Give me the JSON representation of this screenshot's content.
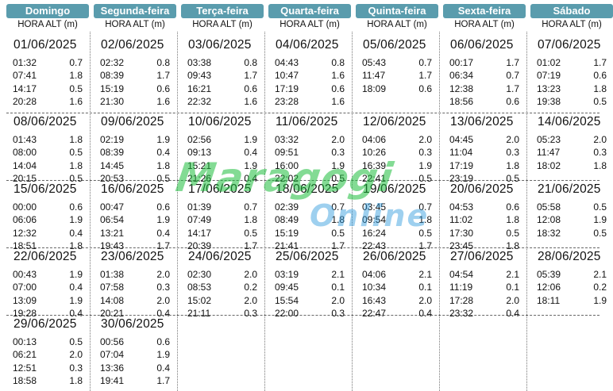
{
  "header": {
    "days": [
      "Domingo",
      "Segunda-feira",
      "Terça-feira",
      "Quarta-feira",
      "Quinta-feira",
      "Sexta-feira",
      "Sábado"
    ],
    "subheader": "HORA ALT (m)"
  },
  "watermark": {
    "line1": "Maragogi",
    "line2": "Online"
  },
  "weeks": [
    [
      null,
      null,
      null,
      null,
      null,
      null,
      null
    ]
  ],
  "calendar": [
    [
      {
        "date": "01/06/2025",
        "tides": [
          [
            "01:32",
            "0.7"
          ],
          [
            "07:41",
            "1.8"
          ],
          [
            "14:17",
            "0.5"
          ],
          [
            "20:28",
            "1.6"
          ]
        ]
      },
      {
        "date": "02/06/2025",
        "tides": [
          [
            "02:32",
            "0.8"
          ],
          [
            "08:39",
            "1.7"
          ],
          [
            "15:19",
            "0.6"
          ],
          [
            "21:30",
            "1.6"
          ]
        ]
      },
      {
        "date": "03/06/2025",
        "tides": [
          [
            "03:38",
            "0.8"
          ],
          [
            "09:43",
            "1.7"
          ],
          [
            "16:21",
            "0.6"
          ],
          [
            "22:32",
            "1.6"
          ]
        ]
      },
      {
        "date": "04/06/2025",
        "tides": [
          [
            "04:43",
            "0.8"
          ],
          [
            "10:47",
            "1.6"
          ],
          [
            "17:19",
            "0.6"
          ],
          [
            "23:28",
            "1.6"
          ]
        ]
      },
      {
        "date": "05/06/2025",
        "tides": [
          [
            "05:43",
            "0.7"
          ],
          [
            "11:47",
            "1.7"
          ],
          [
            "18:09",
            "0.6"
          ]
        ]
      },
      {
        "date": "06/06/2025",
        "tides": [
          [
            "00:17",
            "1.7"
          ],
          [
            "06:34",
            "0.7"
          ],
          [
            "12:38",
            "1.7"
          ],
          [
            "18:56",
            "0.6"
          ]
        ]
      },
      {
        "date": "07/06/2025",
        "tides": [
          [
            "01:02",
            "1.7"
          ],
          [
            "07:19",
            "0.6"
          ],
          [
            "13:23",
            "1.8"
          ],
          [
            "19:38",
            "0.5"
          ]
        ]
      }
    ],
    [
      {
        "date": "08/06/2025",
        "tides": [
          [
            "01:43",
            "1.8"
          ],
          [
            "08:00",
            "0.5"
          ],
          [
            "14:04",
            "1.8"
          ],
          [
            "20:15",
            "0.5"
          ]
        ]
      },
      {
        "date": "09/06/2025",
        "tides": [
          [
            "02:19",
            "1.9"
          ],
          [
            "08:39",
            "0.4"
          ],
          [
            "14:45",
            "1.8"
          ],
          [
            "20:53",
            "0.5"
          ]
        ]
      },
      {
        "date": "10/06/2025",
        "tides": [
          [
            "02:56",
            "1.9"
          ],
          [
            "09:13",
            "0.4"
          ],
          [
            "15:21",
            "1.9"
          ],
          [
            "21:26",
            "0.4"
          ]
        ]
      },
      {
        "date": "11/06/2025",
        "tides": [
          [
            "03:32",
            "2.0"
          ],
          [
            "09:51",
            "0.3"
          ],
          [
            "16:00",
            "1.9"
          ],
          [
            "22:02",
            "0.5"
          ]
        ]
      },
      {
        "date": "12/06/2025",
        "tides": [
          [
            "04:06",
            "2.0"
          ],
          [
            "10:26",
            "0.3"
          ],
          [
            "16:39",
            "1.9"
          ],
          [
            "22:41",
            "0.5"
          ]
        ]
      },
      {
        "date": "13/06/2025",
        "tides": [
          [
            "04:45",
            "2.0"
          ],
          [
            "11:04",
            "0.3"
          ],
          [
            "17:19",
            "1.8"
          ],
          [
            "23:19",
            "0.5"
          ]
        ]
      },
      {
        "date": "14/06/2025",
        "tides": [
          [
            "05:23",
            "2.0"
          ],
          [
            "11:47",
            "0.3"
          ],
          [
            "18:02",
            "1.8"
          ]
        ]
      }
    ],
    [
      {
        "date": "15/06/2025",
        "tides": [
          [
            "00:00",
            "0.6"
          ],
          [
            "06:06",
            "1.9"
          ],
          [
            "12:32",
            "0.4"
          ],
          [
            "18:51",
            "1.8"
          ]
        ]
      },
      {
        "date": "16/06/2025",
        "tides": [
          [
            "00:47",
            "0.6"
          ],
          [
            "06:54",
            "1.9"
          ],
          [
            "13:21",
            "0.4"
          ],
          [
            "19:43",
            "1.7"
          ]
        ]
      },
      {
        "date": "17/06/2025",
        "tides": [
          [
            "01:39",
            "0.7"
          ],
          [
            "07:49",
            "1.8"
          ],
          [
            "14:17",
            "0.5"
          ],
          [
            "20:39",
            "1.7"
          ]
        ]
      },
      {
        "date": "18/06/2025",
        "tides": [
          [
            "02:39",
            "0.7"
          ],
          [
            "08:49",
            "1.8"
          ],
          [
            "15:19",
            "0.5"
          ],
          [
            "21:41",
            "1.7"
          ]
        ]
      },
      {
        "date": "19/06/2025",
        "tides": [
          [
            "03:45",
            "0.7"
          ],
          [
            "09:54",
            "1.8"
          ],
          [
            "16:24",
            "0.5"
          ],
          [
            "22:43",
            "1.7"
          ]
        ]
      },
      {
        "date": "20/06/2025",
        "tides": [
          [
            "04:53",
            "0.6"
          ],
          [
            "11:02",
            "1.8"
          ],
          [
            "17:30",
            "0.5"
          ],
          [
            "23:45",
            "1.8"
          ]
        ]
      },
      {
        "date": "21/06/2025",
        "tides": [
          [
            "05:58",
            "0.5"
          ],
          [
            "12:08",
            "1.9"
          ],
          [
            "18:32",
            "0.5"
          ]
        ]
      }
    ],
    [
      {
        "date": "22/06/2025",
        "tides": [
          [
            "00:43",
            "1.9"
          ],
          [
            "07:00",
            "0.4"
          ],
          [
            "13:09",
            "1.9"
          ],
          [
            "19:28",
            "0.4"
          ]
        ]
      },
      {
        "date": "23/06/2025",
        "tides": [
          [
            "01:38",
            "2.0"
          ],
          [
            "07:58",
            "0.3"
          ],
          [
            "14:08",
            "2.0"
          ],
          [
            "20:21",
            "0.4"
          ]
        ]
      },
      {
        "date": "24/06/2025",
        "tides": [
          [
            "02:30",
            "2.0"
          ],
          [
            "08:53",
            "0.2"
          ],
          [
            "15:02",
            "2.0"
          ],
          [
            "21:11",
            "0.3"
          ]
        ]
      },
      {
        "date": "25/06/2025",
        "tides": [
          [
            "03:19",
            "2.1"
          ],
          [
            "09:45",
            "0.1"
          ],
          [
            "15:54",
            "2.0"
          ],
          [
            "22:00",
            "0.3"
          ]
        ]
      },
      {
        "date": "26/06/2025",
        "tides": [
          [
            "04:06",
            "2.1"
          ],
          [
            "10:34",
            "0.1"
          ],
          [
            "16:43",
            "2.0"
          ],
          [
            "22:47",
            "0.4"
          ]
        ]
      },
      {
        "date": "27/06/2025",
        "tides": [
          [
            "04:54",
            "2.1"
          ],
          [
            "11:19",
            "0.1"
          ],
          [
            "17:28",
            "2.0"
          ],
          [
            "23:32",
            "0.4"
          ]
        ]
      },
      {
        "date": "28/06/2025",
        "tides": [
          [
            "05:39",
            "2.1"
          ],
          [
            "12:06",
            "0.2"
          ],
          [
            "18:11",
            "1.9"
          ]
        ]
      }
    ],
    [
      {
        "date": "29/06/2025",
        "tides": [
          [
            "00:13",
            "0.5"
          ],
          [
            "06:21",
            "2.0"
          ],
          [
            "12:51",
            "0.3"
          ],
          [
            "18:58",
            "1.8"
          ]
        ]
      },
      {
        "date": "30/06/2025",
        "tides": [
          [
            "00:56",
            "0.6"
          ],
          [
            "07:04",
            "1.9"
          ],
          [
            "13:36",
            "0.4"
          ],
          [
            "19:41",
            "1.7"
          ]
        ]
      },
      null,
      null,
      null,
      null,
      null
    ]
  ]
}
